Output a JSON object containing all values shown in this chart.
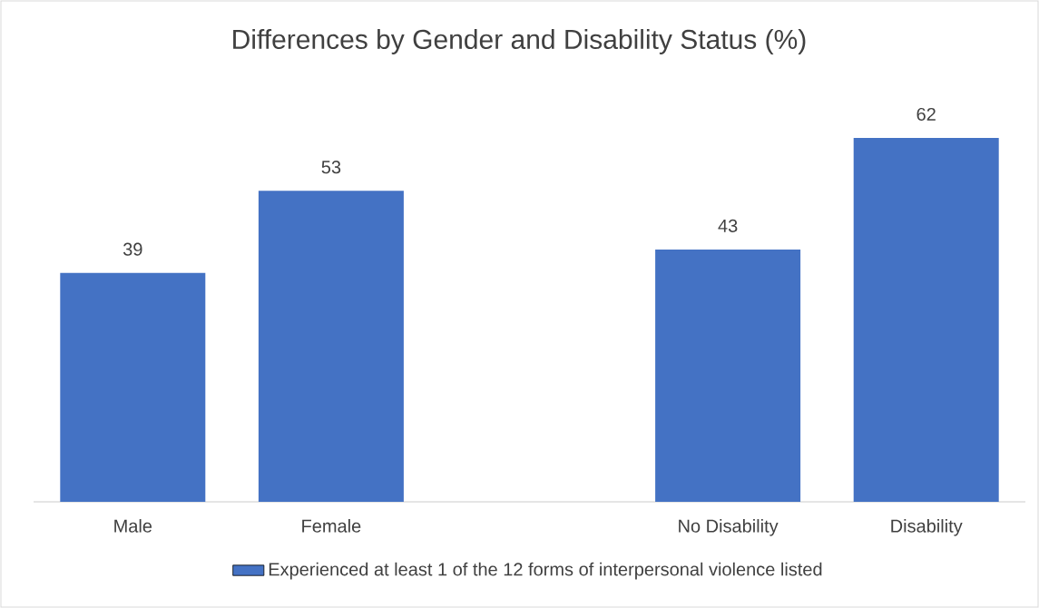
{
  "chart_data": {
    "type": "bar",
    "title": "Differences by Gender and Disability Status (%)",
    "categories": [
      "Male",
      "Female",
      null,
      "No Disability",
      "Disability"
    ],
    "series": [
      {
        "name": "Experienced at least 1 of the 12 forms of interpersonal violence listed",
        "color": "#4472c4",
        "values": [
          39,
          53,
          null,
          43,
          62
        ]
      }
    ],
    "data_labels": true,
    "legend": "bottom",
    "tick_labels": "x",
    "grid": false
  }
}
